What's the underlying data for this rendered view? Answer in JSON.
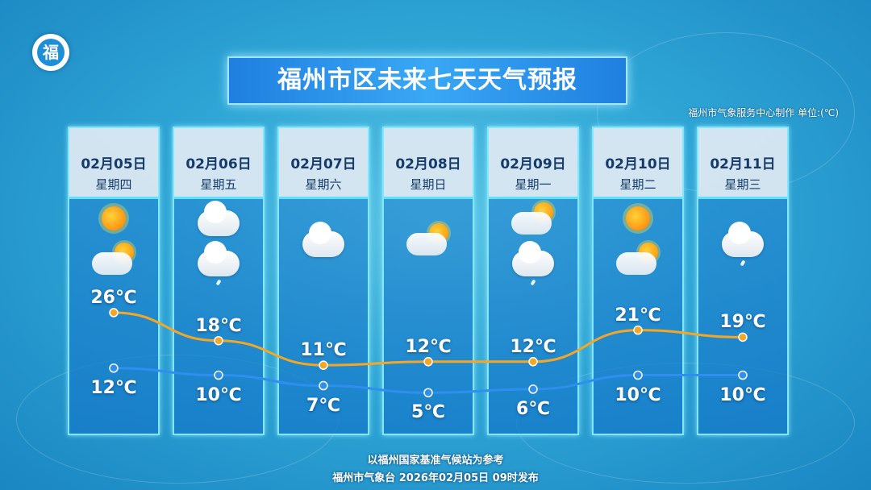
{
  "logo_text": "福",
  "title": "福州市区未来七天天气预报",
  "producer": "福州市气象服务中心制作   单位:(℃)",
  "footer": {
    "line1": "以福州国家基准气候站为参考",
    "line2": "福州市气象台  2026年02月05日  09时发布"
  },
  "days": [
    {
      "date": "02月05日",
      "weekday": "星期四",
      "icons": [
        "sunny-icon",
        "partly-cloudy-icon"
      ]
    },
    {
      "date": "02月06日",
      "weekday": "星期五",
      "icons": [
        "cloudy-icon",
        "light-rain-icon"
      ]
    },
    {
      "date": "02月07日",
      "weekday": "星期六",
      "icons": [
        "cloudy-icon"
      ]
    },
    {
      "date": "02月08日",
      "weekday": "星期日",
      "icons": [
        "partly-cloudy-icon"
      ]
    },
    {
      "date": "02月09日",
      "weekday": "星期一",
      "icons": [
        "partly-cloudy-icon",
        "light-rain-icon"
      ]
    },
    {
      "date": "02月10日",
      "weekday": "星期二",
      "icons": [
        "sunny-icon",
        "partly-cloudy-icon"
      ]
    },
    {
      "date": "02月11日",
      "weekday": "星期三",
      "icons": [
        "light-rain-icon"
      ]
    }
  ],
  "chart_data": {
    "type": "line",
    "categories": [
      "02月05日",
      "02月06日",
      "02月07日",
      "02月08日",
      "02月09日",
      "02月10日",
      "02月11日"
    ],
    "unit": "℃",
    "series": [
      {
        "key": "high",
        "values": [
          26,
          18,
          11,
          12,
          12,
          21,
          19
        ],
        "labels": [
          "26℃",
          "18℃",
          "11℃",
          "12℃",
          "12℃",
          "21℃",
          "19℃"
        ],
        "color": "#f5a623"
      },
      {
        "key": "low",
        "values": [
          12,
          10,
          7,
          5,
          6,
          10,
          10
        ],
        "labels": [
          "12℃",
          "10℃",
          "7℃",
          "5℃",
          "6℃",
          "10℃",
          "10℃"
        ],
        "color": "#2f8ff0"
      }
    ]
  }
}
